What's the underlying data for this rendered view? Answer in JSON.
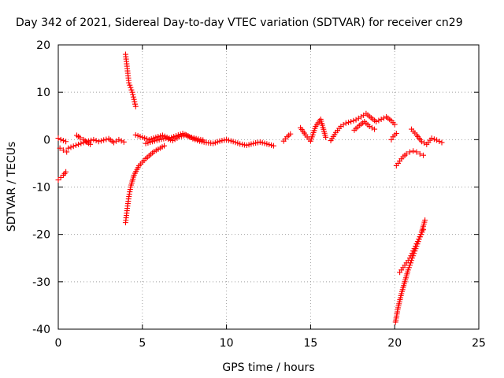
{
  "chart_data": {
    "type": "scatter",
    "title": "Day 342 of 2021, Sidereal Day-to-day VTEC variation (SDTVAR) for receiver cn29",
    "xlabel": "GPS time / hours",
    "ylabel": "SDTVAR / TECUs",
    "xlim": [
      0,
      25
    ],
    "ylim": [
      -40,
      20
    ],
    "xticks": [
      "0",
      "5",
      "10",
      "15",
      "20",
      "25"
    ],
    "yticks": [
      "20",
      "10",
      "0",
      "-10",
      "-20",
      "-30",
      "-40"
    ],
    "grid": true,
    "marker": "+",
    "series": [
      {
        "name": "SDTVAR",
        "color": "#ff0000",
        "segments": [
          {
            "x": [
              0.0,
              0.15,
              0.3,
              0.45
            ],
            "y": [
              0.3,
              0.0,
              -0.2,
              -0.4
            ]
          },
          {
            "x": [
              0.1,
              0.3,
              0.5
            ],
            "y": [
              -1.8,
              -2.2,
              -2.6
            ]
          },
          {
            "x": [
              0.0,
              0.15,
              0.3,
              0.45
            ],
            "y": [
              -8.5,
              -8.0,
              -7.5,
              -6.8
            ]
          },
          {
            "x": [
              0.6,
              0.9,
              1.2,
              1.5,
              1.8,
              2.1,
              2.4,
              2.7,
              3.0,
              3.3,
              3.6,
              3.9
            ],
            "y": [
              -1.8,
              -1.4,
              -1.0,
              -0.6,
              -0.3,
              0.0,
              -0.4,
              -0.1,
              0.2,
              -0.6,
              0.0,
              -0.5
            ]
          },
          {
            "x": [
              1.1,
              1.3,
              1.5,
              1.7,
              1.9
            ],
            "y": [
              0.9,
              0.4,
              0.0,
              -0.5,
              -1.0
            ]
          },
          {
            "x": [
              4.0,
              4.05,
              4.1,
              4.15,
              4.2,
              4.3,
              4.4,
              4.5,
              4.6
            ],
            "y": [
              18,
              16.5,
              15,
              13.5,
              12,
              11,
              10,
              8.5,
              7.0
            ]
          },
          {
            "x": [
              4.0,
              4.1,
              4.2,
              4.3,
              4.5,
              4.8,
              5.2,
              5.7,
              6.3
            ],
            "y": [
              -17.5,
              -14.5,
              -12,
              -10,
              -7.5,
              -5.5,
              -4,
              -2.5,
              -1.3
            ]
          },
          {
            "x": [
              4.6,
              5.0,
              5.4,
              5.8,
              6.2,
              6.6,
              7.0,
              7.4,
              7.8,
              8.2,
              8.6
            ],
            "y": [
              1.0,
              0.5,
              0.0,
              0.5,
              0.9,
              0.3,
              0.8,
              1.3,
              0.6,
              0.2,
              -0.1
            ]
          },
          {
            "x": [
              5.2,
              5.6,
              6.0,
              6.4,
              6.8,
              7.2,
              7.6,
              8.0,
              8.4,
              8.8,
              9.2,
              9.6,
              10.0,
              10.4,
              10.8,
              11.2,
              11.6,
              12.0,
              12.4,
              12.8
            ],
            "y": [
              -0.8,
              -0.4,
              0.0,
              0.3,
              -0.2,
              0.6,
              1.0,
              0.2,
              -0.3,
              -0.6,
              -0.8,
              -0.3,
              0.0,
              -0.4,
              -0.9,
              -1.2,
              -0.8,
              -0.5,
              -0.9,
              -1.3
            ]
          },
          {
            "x": [
              13.4,
              13.6,
              13.8
            ],
            "y": [
              -0.3,
              0.6,
              1.2
            ]
          },
          {
            "x": [
              14.4,
              14.7,
              15.0,
              15.3,
              15.6,
              15.9
            ],
            "y": [
              2.5,
              1.0,
              -0.3,
              2.8,
              4.3,
              0.5
            ]
          },
          {
            "x": [
              16.2,
              16.5,
              16.8,
              17.1,
              17.4,
              17.7,
              18.0,
              18.3,
              18.6,
              18.9,
              19.2,
              19.5,
              19.8,
              20.0
            ],
            "y": [
              -0.2,
              1.5,
              2.8,
              3.5,
              3.8,
              4.2,
              4.8,
              5.5,
              4.6,
              3.8,
              4.3,
              4.8,
              4.0,
              3.2
            ]
          },
          {
            "x": [
              17.6,
              17.9,
              18.2,
              18.5,
              18.8
            ],
            "y": [
              2.0,
              3.0,
              3.8,
              2.8,
              2.2
            ]
          },
          {
            "x": [
              19.8,
              19.9,
              20.0,
              20.1
            ],
            "y": [
              0.0,
              0.6,
              1.0,
              1.3
            ]
          },
          {
            "x": [
              20.1,
              20.3,
              20.5,
              20.7,
              20.9,
              21.1,
              21.3,
              21.5,
              21.7
            ],
            "y": [
              -5.5,
              -4.5,
              -3.6,
              -3.0,
              -2.6,
              -2.4,
              -2.6,
              -3.0,
              -3.3
            ]
          },
          {
            "x": [
              21.0,
              21.3,
              21.6,
              21.9,
              22.2,
              22.5,
              22.8
            ],
            "y": [
              2.2,
              1.0,
              -0.4,
              -1.0,
              0.3,
              -0.1,
              -0.6
            ]
          },
          {
            "x": [
              20.05,
              20.2,
              20.4,
              20.6,
              20.8,
              21.0,
              21.2,
              21.4,
              21.6,
              21.8
            ],
            "y": [
              -38.5,
              -35.5,
              -32.5,
              -30,
              -27.5,
              -25.5,
              -23.5,
              -21.5,
              -19.5,
              -17
            ]
          },
          {
            "x": [
              20.3,
              20.5,
              20.7,
              20.9,
              21.1,
              21.3,
              21.5,
              21.7
            ],
            "y": [
              -28.0,
              -27.0,
              -26.0,
              -25.0,
              -23.5,
              -22.0,
              -20.5,
              -19.0
            ]
          }
        ]
      }
    ]
  }
}
